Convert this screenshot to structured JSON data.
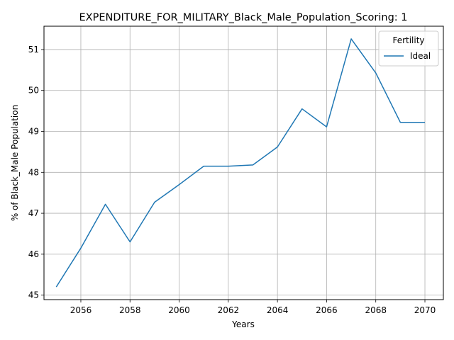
{
  "chart_data": {
    "type": "line",
    "title": "EXPENDITURE_FOR_MILITARY_Black_Male_Population_Scoring: 1",
    "xlabel": "Years",
    "ylabel": "% of Black_Male Population",
    "xlim": [
      2054.5,
      2070.75
    ],
    "ylim": [
      44.89,
      51.57
    ],
    "xticks": [
      2056,
      2058,
      2060,
      2062,
      2064,
      2066,
      2068,
      2070
    ],
    "yticks": [
      45,
      46,
      47,
      48,
      49,
      50,
      51
    ],
    "grid": true,
    "legend": {
      "title": "Fertility",
      "position": "top-right"
    },
    "series": [
      {
        "name": "Ideal",
        "color": "#1f77b4",
        "x": [
          2055,
          2056,
          2057,
          2058,
          2059,
          2060,
          2061,
          2062,
          2063,
          2064,
          2065,
          2066,
          2067,
          2068,
          2069,
          2070
        ],
        "y": [
          45.2,
          46.15,
          47.22,
          46.3,
          47.27,
          47.7,
          48.15,
          48.15,
          48.18,
          48.62,
          49.55,
          49.11,
          51.26,
          50.43,
          49.22,
          49.22
        ]
      }
    ]
  }
}
